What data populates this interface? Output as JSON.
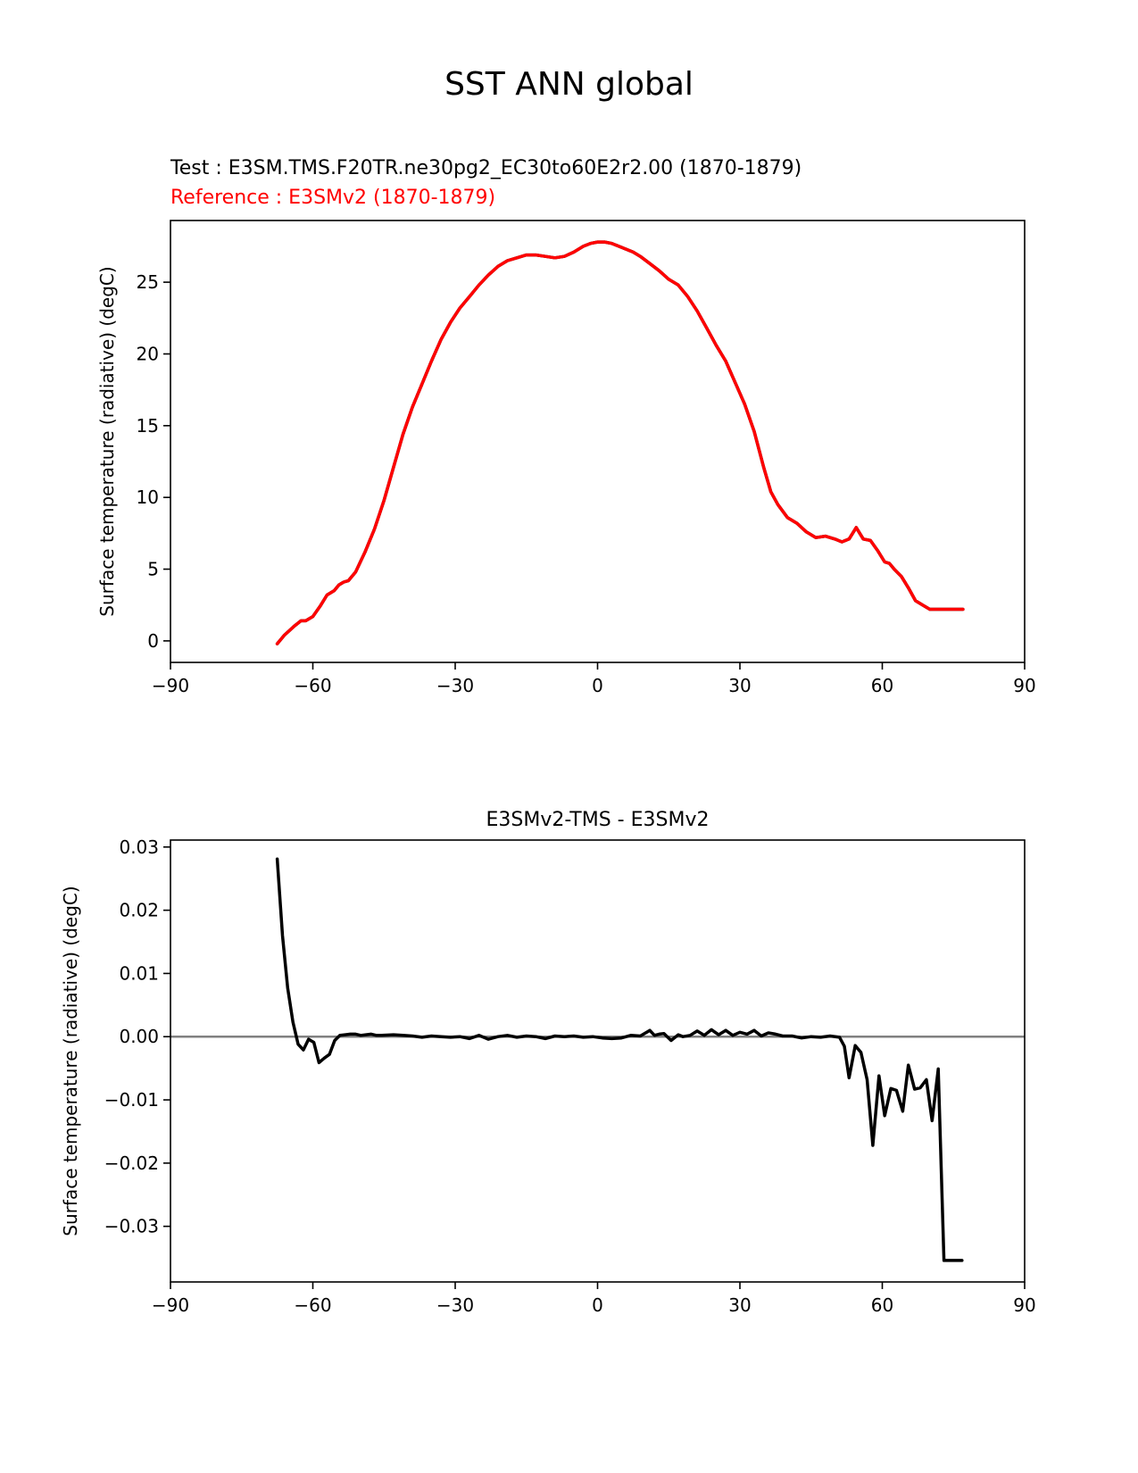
{
  "figure": {
    "title": "SST ANN global",
    "test_label": "Test : E3SM.TMS.F20TR.ne30pg2_EC30to60E2r2.00 (1870-1879)",
    "reference_label": "Reference : E3SMv2 (1870-1879)"
  },
  "chart_data": [
    {
      "type": "line",
      "title": "",
      "xlabel": "",
      "ylabel": "Surface temperature (radiative) (degC)",
      "xlim": [
        -90,
        90
      ],
      "ylim": [
        -1.5,
        29.3
      ],
      "xticks": [
        -90,
        -60,
        -30,
        0,
        30,
        60,
        90
      ],
      "xtick_labels": [
        "−90",
        "−60",
        "−30",
        "0",
        "30",
        "60",
        "90"
      ],
      "yticks": [
        0,
        5,
        10,
        15,
        20,
        25
      ],
      "ytick_labels": [
        "0",
        "5",
        "10",
        "15",
        "20",
        "25"
      ],
      "grid": false,
      "series": [
        {
          "color": "#ff0000",
          "overlay_color": "#000000",
          "x": [
            -67.5,
            -66,
            -64,
            -62.5,
            -61.5,
            -60,
            -58.5,
            -57,
            -55.5,
            -54.5,
            -53.5,
            -52.5,
            -51,
            -49,
            -47,
            -45,
            -43,
            -41,
            -39,
            -37,
            -35,
            -33,
            -31,
            -29,
            -27,
            -25,
            -23,
            -21,
            -19,
            -17,
            -15,
            -13,
            -11,
            -9,
            -7,
            -5,
            -3,
            -1.5,
            0,
            1.5,
            3,
            4.5,
            6,
            7.5,
            9,
            11,
            13,
            15,
            17,
            19,
            21,
            23,
            25,
            27,
            29,
            31,
            33,
            35,
            36.5,
            38,
            40,
            42,
            44,
            46,
            48,
            50,
            51.5,
            53,
            54.5,
            56,
            57.5,
            59,
            60.5,
            61.5,
            62.5,
            64,
            65.5,
            67,
            68.5,
            70,
            71.5,
            72.5,
            74,
            75.5,
            77
          ],
          "y": [
            -0.2,
            0.4,
            1.0,
            1.4,
            1.4,
            1.7,
            2.4,
            3.2,
            3.5,
            3.9,
            4.1,
            4.2,
            4.8,
            6.2,
            7.8,
            9.8,
            12.1,
            14.4,
            16.3,
            17.9,
            19.5,
            21.0,
            22.2,
            23.2,
            24.0,
            24.8,
            25.5,
            26.1,
            26.5,
            26.7,
            26.9,
            26.9,
            26.8,
            26.7,
            26.8,
            27.1,
            27.5,
            27.7,
            27.8,
            27.8,
            27.7,
            27.5,
            27.3,
            27.1,
            26.8,
            26.3,
            25.8,
            25.2,
            24.8,
            24.0,
            23.0,
            21.8,
            20.6,
            19.5,
            18.0,
            16.5,
            14.6,
            12.1,
            10.4,
            9.5,
            8.6,
            8.2,
            7.6,
            7.2,
            7.3,
            7.1,
            6.9,
            7.1,
            7.9,
            7.1,
            7.0,
            6.3,
            5.5,
            5.4,
            5.0,
            4.5,
            3.7,
            2.8,
            2.5,
            2.2,
            2.2,
            2.2,
            2.2,
            2.2,
            2.2
          ]
        }
      ]
    },
    {
      "type": "line",
      "title": "E3SMv2-TMS - E3SMv2",
      "xlabel": "",
      "ylabel": "Surface temperature (radiative) (degC)",
      "xlim": [
        -90,
        90
      ],
      "ylim": [
        -0.0388,
        0.0311
      ],
      "xticks": [
        -90,
        -60,
        -30,
        0,
        30,
        60,
        90
      ],
      "xtick_labels": [
        "−90",
        "−60",
        "−30",
        "0",
        "30",
        "60",
        "90"
      ],
      "yticks": [
        0.03,
        0.02,
        0.01,
        0.0,
        -0.01,
        -0.02,
        -0.03
      ],
      "ytick_labels": [
        "0.03",
        "0.02",
        "0.01",
        "0.00",
        "−0.01",
        "−0.02",
        "−0.03"
      ],
      "grid": false,
      "zero_line": {
        "y": 0,
        "color": "#808080"
      },
      "series": [
        {
          "color": "#000000",
          "x": [
            -67.5,
            -66.4,
            -65.3,
            -64.2,
            -63.1,
            -62,
            -60.9,
            -59.8,
            -58.7,
            -57.6,
            -56.5,
            -55.4,
            -54.3,
            -53.2,
            -52.1,
            -51,
            -49.9,
            -48.8,
            -47.7,
            -46.6,
            -45.5,
            -43,
            -41,
            -39,
            -37,
            -35,
            -33,
            -31,
            -29,
            -27,
            -25,
            -23,
            -21,
            -19,
            -17,
            -15,
            -13,
            -11,
            -9,
            -7,
            -5,
            -3,
            -1,
            1,
            3,
            5,
            7,
            9,
            11,
            12,
            13,
            14,
            15.5,
            17,
            18,
            19.5,
            21,
            22.5,
            24,
            25.5,
            27,
            28.5,
            30,
            31.5,
            33,
            34.5,
            36,
            37.5,
            39,
            41,
            43,
            45,
            47,
            49,
            51,
            52,
            53,
            54.3,
            55.5,
            56.8,
            58,
            59.3,
            60.5,
            61.8,
            63,
            64.3,
            65.5,
            66.8,
            68,
            69.3,
            70.5,
            71.8,
            73,
            74.3,
            75.5,
            76.8
          ],
          "y": [
            0.0281,
            0.016,
            0.0077,
            0.0023,
            -0.0012,
            -0.0021,
            -0.0004,
            -0.0009,
            -0.0041,
            -0.0034,
            -0.0028,
            -0.0006,
            0.0002,
            0.0003,
            0.0004,
            0.0004,
            0.0002,
            0.0003,
            0.0004,
            0.0002,
            0.0002,
            0.0003,
            0.0002,
            0.0001,
            -0.0001,
            0.0001,
            0.0,
            -0.0001,
            0.0,
            -0.0003,
            0.0002,
            -0.0004,
            0.0,
            0.0002,
            -0.0001,
            0.0001,
            0.0,
            -0.0003,
            0.0001,
            0.0,
            0.0001,
            -0.0001,
            0.0,
            -0.0002,
            -0.0003,
            -0.0002,
            0.0002,
            0.0001,
            0.001,
            0.0002,
            0.0004,
            0.0005,
            -0.0006,
            0.0003,
            0.0,
            0.0002,
            0.0009,
            0.0002,
            0.0011,
            0.0003,
            0.001,
            0.0002,
            0.0007,
            0.0004,
            0.001,
            0.0001,
            0.0006,
            0.0004,
            0.0001,
            0.0001,
            -0.0002,
            0.0,
            -0.0001,
            0.0001,
            -0.0001,
            -0.0015,
            -0.0065,
            -0.0014,
            -0.0025,
            -0.0068,
            -0.0172,
            -0.0062,
            -0.0125,
            -0.0082,
            -0.0085,
            -0.0118,
            -0.0045,
            -0.0083,
            -0.0081,
            -0.0068,
            -0.0133,
            -0.0051,
            -0.0354,
            -0.0354,
            -0.0354,
            -0.0354
          ]
        }
      ]
    }
  ]
}
